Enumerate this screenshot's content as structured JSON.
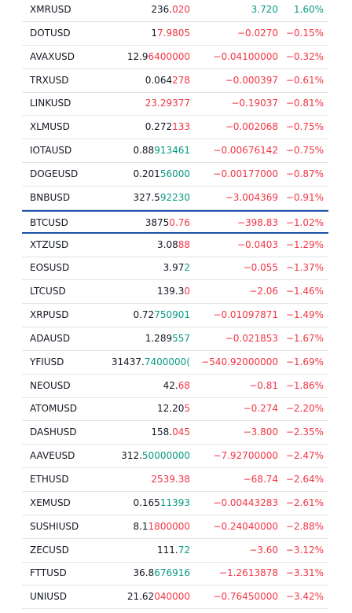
{
  "colors": {
    "text": "#131722",
    "up": "#089981",
    "down": "#f23645",
    "divider": "#e0e3eb",
    "selected_border": "#1e53a8"
  },
  "rows": [
    {
      "symbol": "XMRUSD",
      "last_a": "236.",
      "last_b": "020",
      "last_b_dir": "down",
      "change": "3.720",
      "change_pct": "1.60%",
      "dir": "up"
    },
    {
      "symbol": "DOTUSD",
      "last_a": "1",
      "last_b": "7.9805",
      "last_b_dir": "down",
      "change": "−0.0270",
      "change_pct": "−0.15%",
      "dir": "down"
    },
    {
      "symbol": "AVAXUSD",
      "last_a": "12.9",
      "last_b": "6400000",
      "last_b_dir": "down",
      "change": "−0.04100000",
      "change_pct": "−0.32%",
      "dir": "down"
    },
    {
      "symbol": "TRXUSD",
      "last_a": "0.064",
      "last_b": "278",
      "last_b_dir": "down",
      "change": "−0.000397",
      "change_pct": "−0.61%",
      "dir": "down"
    },
    {
      "symbol": "LINKUSD",
      "last_a": "",
      "last_b": "23.29377",
      "last_b_dir": "down",
      "change": "−0.19037",
      "change_pct": "−0.81%",
      "dir": "down"
    },
    {
      "symbol": "XLMUSD",
      "last_a": "0.272",
      "last_b": "133",
      "last_b_dir": "down",
      "change": "−0.002068",
      "change_pct": "−0.75%",
      "dir": "down"
    },
    {
      "symbol": "IOTAUSD",
      "last_a": "0.88",
      "last_b": "913461",
      "last_b_dir": "up",
      "change": "−0.00676142",
      "change_pct": "−0.75%",
      "dir": "down"
    },
    {
      "symbol": "DOGEUSD",
      "last_a": "0.201",
      "last_b": "56000",
      "last_b_dir": "up",
      "change": "−0.00177000",
      "change_pct": "−0.87%",
      "dir": "down"
    },
    {
      "symbol": "BNBUSD",
      "last_a": "327.5",
      "last_b": "92230",
      "last_b_dir": "up",
      "change": "−3.004369",
      "change_pct": "−0.91%",
      "dir": "down"
    },
    {
      "symbol": "BTCUSD",
      "last_a": "3875",
      "last_b": "0.76",
      "last_b_dir": "down",
      "change": "−398.83",
      "change_pct": "−1.02%",
      "dir": "down",
      "selected": true
    },
    {
      "symbol": "XTZUSD",
      "last_a": "3.08",
      "last_b": "88",
      "last_b_dir": "down",
      "change": "−0.0403",
      "change_pct": "−1.29%",
      "dir": "down"
    },
    {
      "symbol": "EOSUSD",
      "last_a": "3.97",
      "last_b": "2",
      "last_b_dir": "up",
      "change": "−0.055",
      "change_pct": "−1.37%",
      "dir": "down"
    },
    {
      "symbol": "LTCUSD",
      "last_a": "139.3",
      "last_b": "0",
      "last_b_dir": "down",
      "change": "−2.06",
      "change_pct": "−1.46%",
      "dir": "down"
    },
    {
      "symbol": "XRPUSD",
      "last_a": "0.72",
      "last_b": "750901",
      "last_b_dir": "up",
      "change": "−0.01097871",
      "change_pct": "−1.49%",
      "dir": "down"
    },
    {
      "symbol": "ADAUSD",
      "last_a": "1.289",
      "last_b": "557",
      "last_b_dir": "up",
      "change": "−0.021853",
      "change_pct": "−1.67%",
      "dir": "down"
    },
    {
      "symbol": "YFIUSD",
      "last_a": "31437.",
      "last_b": "7400000(",
      "last_b_dir": "up",
      "change": "−540.92000000",
      "change_pct": "−1.69%",
      "dir": "down"
    },
    {
      "symbol": "NEOUSD",
      "last_a": "42.",
      "last_b": "68",
      "last_b_dir": "down",
      "change": "−0.81",
      "change_pct": "−1.86%",
      "dir": "down"
    },
    {
      "symbol": "ATOMUSD",
      "last_a": "12.20",
      "last_b": "5",
      "last_b_dir": "down",
      "change": "−0.274",
      "change_pct": "−2.20%",
      "dir": "down"
    },
    {
      "symbol": "DASHUSD",
      "last_a": "158.",
      "last_b": "045",
      "last_b_dir": "down",
      "change": "−3.800",
      "change_pct": "−2.35%",
      "dir": "down"
    },
    {
      "symbol": "AAVEUSD",
      "last_a": "312.",
      "last_b": "50000000",
      "last_b_dir": "up",
      "change": "−7.92700000",
      "change_pct": "−2.47%",
      "dir": "down"
    },
    {
      "symbol": "ETHUSD",
      "last_a": "",
      "last_b": "2539.38",
      "last_b_dir": "down",
      "change": "−68.74",
      "change_pct": "−2.64%",
      "dir": "down"
    },
    {
      "symbol": "XEMUSD",
      "last_a": "0.165",
      "last_b": "11393",
      "last_b_dir": "up",
      "change": "−0.00443283",
      "change_pct": "−2.61%",
      "dir": "down"
    },
    {
      "symbol": "SUSHIUSD",
      "last_a": "8.1",
      "last_b": "1800000",
      "last_b_dir": "down",
      "change": "−0.24040000",
      "change_pct": "−2.88%",
      "dir": "down"
    },
    {
      "symbol": "ZECUSD",
      "last_a": "111.",
      "last_b": "72",
      "last_b_dir": "up",
      "change": "−3.60",
      "change_pct": "−3.12%",
      "dir": "down"
    },
    {
      "symbol": "FTTUSD",
      "last_a": "36.8",
      "last_b": "676916",
      "last_b_dir": "up",
      "change": "−1.2613878",
      "change_pct": "−3.31%",
      "dir": "down"
    },
    {
      "symbol": "UNIUSD",
      "last_a": "21.62",
      "last_b": "040000",
      "last_b_dir": "down",
      "change": "−0.76450000",
      "change_pct": "−3.42%",
      "dir": "down"
    }
  ]
}
